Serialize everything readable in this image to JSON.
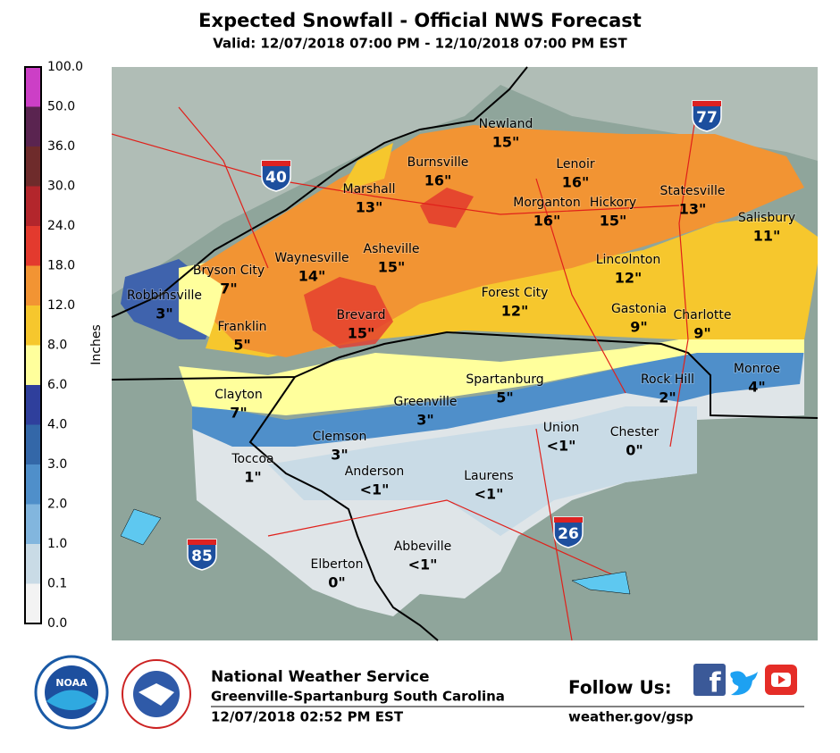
{
  "header": {
    "title": "Expected Snowfall - Official NWS Forecast",
    "valid": "Valid: 12/07/2018 07:00 PM - 12/10/2018 07:00 PM EST"
  },
  "legend": {
    "unit": "Inches",
    "labels": [
      "100.0",
      "50.0",
      "36.0",
      "30.0",
      "24.0",
      "18.0",
      "12.0",
      "8.0",
      "6.0",
      "4.0",
      "3.0",
      "2.0",
      "1.0",
      "0.1",
      "0.0"
    ],
    "colors": [
      "#cc3fc6",
      "#5a2450",
      "#6e2b2b",
      "#b3262c",
      "#e33a2e",
      "#f29433",
      "#f6c72d",
      "#ffff9c",
      "#2f3f9c",
      "#3367a8",
      "#4f8fca",
      "#82b6de",
      "#c9dbe6",
      "#f3f3f3"
    ]
  },
  "map": {
    "cities": [
      {
        "name": "Newland",
        "amount": "15\""
      },
      {
        "name": "Burnsville",
        "amount": "16\""
      },
      {
        "name": "Lenoir",
        "amount": "16\""
      },
      {
        "name": "Marshall",
        "amount": "13\""
      },
      {
        "name": "Morganton",
        "amount": "16\""
      },
      {
        "name": "Hickory",
        "amount": "15\""
      },
      {
        "name": "Statesville",
        "amount": "13\""
      },
      {
        "name": "Salisbury",
        "amount": "11\""
      },
      {
        "name": "Asheville",
        "amount": "15\""
      },
      {
        "name": "Waynesville",
        "amount": "14\""
      },
      {
        "name": "Bryson City",
        "amount": "7\""
      },
      {
        "name": "Robbinsville",
        "amount": "3\""
      },
      {
        "name": "Lincolnton",
        "amount": "12\""
      },
      {
        "name": "Forest City",
        "amount": "12\""
      },
      {
        "name": "Gastonia",
        "amount": "9\""
      },
      {
        "name": "Charlotte",
        "amount": "9\""
      },
      {
        "name": "Franklin",
        "amount": "5\""
      },
      {
        "name": "Brevard",
        "amount": "15\""
      },
      {
        "name": "Spartanburg",
        "amount": "5\""
      },
      {
        "name": "Rock Hill",
        "amount": "2\""
      },
      {
        "name": "Monroe",
        "amount": "4\""
      },
      {
        "name": "Clayton",
        "amount": "7\""
      },
      {
        "name": "Greenville",
        "amount": "3\""
      },
      {
        "name": "Union",
        "amount": "<1\""
      },
      {
        "name": "Chester",
        "amount": "0\""
      },
      {
        "name": "Clemson",
        "amount": "3\""
      },
      {
        "name": "Toccoa",
        "amount": "1\""
      },
      {
        "name": "Anderson",
        "amount": "<1\""
      },
      {
        "name": "Laurens",
        "amount": "<1\""
      },
      {
        "name": "Abbeville",
        "amount": "<1\""
      },
      {
        "name": "Elberton",
        "amount": "0\""
      }
    ],
    "interstates": [
      "40",
      "77",
      "85",
      "26"
    ]
  },
  "footer": {
    "agency": "National Weather Service",
    "office": "Greenville-Spartanburg South Carolina",
    "issued": "12/07/2018 02:52 PM EST",
    "follow": "Follow Us:",
    "website": "weather.gov/gsp",
    "logo": "NOAA"
  }
}
